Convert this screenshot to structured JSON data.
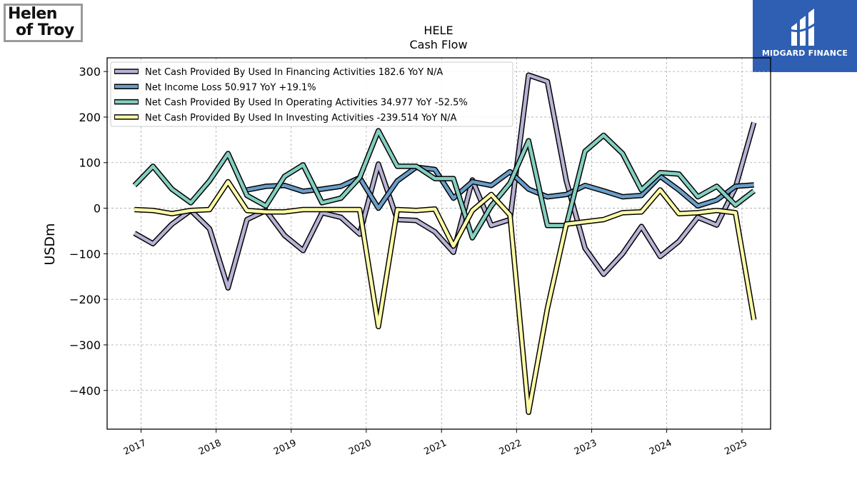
{
  "logos": {
    "left": {
      "line1": "Helen",
      "line2": "of Troy"
    },
    "right": {
      "brand": "MIDGARD FINANCE"
    }
  },
  "colors": {
    "financing": "#b7b3d6",
    "net_income": "#6a9ec9",
    "operating": "#84cfc0",
    "investing": "#fdfba8",
    "outline": "#000000"
  },
  "chart_data": {
    "type": "line",
    "title": "HELE",
    "subtitle": "Cash Flow",
    "ylabel": "USDm",
    "xlabel": "",
    "ylim": [
      -485,
      330
    ],
    "xlim": [
      "2016-07-20",
      "2025-05-20"
    ],
    "yticks": [
      300,
      200,
      100,
      0,
      -100,
      -200,
      -300,
      -400
    ],
    "ytick_labels": [
      "300",
      "200",
      "100",
      "0",
      "−100",
      "−200",
      "−300",
      "−400"
    ],
    "xticks": [
      "2017-01-01",
      "2018-01-01",
      "2019-01-01",
      "2020-01-01",
      "2021-01-01",
      "2022-01-01",
      "2023-01-01",
      "2024-01-01",
      "2025-01-01"
    ],
    "xtick_labels": [
      "2017",
      "2018",
      "2019",
      "2020",
      "2021",
      "2022",
      "2023",
      "2024",
      "2025"
    ],
    "grid": true,
    "legend_position": "top-left",
    "dates": [
      "2016-11-30",
      "2017-02-28",
      "2017-05-31",
      "2017-08-31",
      "2017-11-30",
      "2018-02-28",
      "2018-05-31",
      "2018-08-31",
      "2018-11-30",
      "2019-02-28",
      "2019-05-31",
      "2019-08-31",
      "2019-11-30",
      "2020-02-29",
      "2020-05-31",
      "2020-08-31",
      "2020-11-30",
      "2021-02-28",
      "2021-05-31",
      "2021-08-31",
      "2021-11-30",
      "2022-02-28",
      "2022-05-31",
      "2022-08-31",
      "2022-11-30",
      "2023-02-28",
      "2023-05-31",
      "2023-08-31",
      "2023-11-30",
      "2024-02-29",
      "2024-05-31",
      "2024-08-31",
      "2024-11-30",
      "2025-02-28"
    ],
    "series": [
      {
        "name": "Net Cash Provided By Used In Financing Activities",
        "legend": "Net Cash Provided By Used In Financing Activities  182.6 YoY N/A",
        "color": "#b7b3d6",
        "values": [
          -55,
          -78,
          -35,
          -5,
          -45,
          -175,
          -25,
          -5,
          -60,
          -93,
          -10,
          -20,
          -57,
          97,
          -25,
          -27,
          -52,
          -97,
          62,
          -38,
          -25,
          292,
          278,
          60,
          -88,
          -145,
          -100,
          -40,
          -106,
          -73,
          -20,
          -37,
          45,
          188
        ]
      },
      {
        "name": "Net Income Loss",
        "legend": "Net Income Loss  50.917 YoY +19.1%",
        "color": "#6a9ec9",
        "values": [
          null,
          null,
          null,
          null,
          null,
          null,
          40,
          48,
          50,
          37,
          42,
          48,
          67,
          0,
          60,
          90,
          85,
          22,
          58,
          50,
          80,
          42,
          25,
          30,
          50,
          38,
          25,
          28,
          70,
          40,
          5,
          18,
          48,
          51
        ]
      },
      {
        "name": "Net Cash Provided By Used In Operating Activities",
        "legend": "Net Cash Provided By Used In Operating Activities  34.977 YoY -52.5%",
        "color": "#84cfc0",
        "values": [
          50,
          92,
          42,
          12,
          60,
          120,
          28,
          5,
          70,
          95,
          12,
          22,
          67,
          170,
          92,
          92,
          65,
          65,
          -65,
          5,
          55,
          148,
          -38,
          -38,
          125,
          160,
          120,
          40,
          78,
          75,
          25,
          48,
          7,
          38
        ]
      },
      {
        "name": "Net Cash Provided By Used In Investing Activities",
        "legend": "Net Cash Provided By Used In Investing Activities  -239.514 YoY N/A",
        "color": "#fdfba8",
        "values": [
          -3,
          -5,
          -12,
          -5,
          -3,
          58,
          -5,
          -8,
          -8,
          -3,
          -3,
          -3,
          -3,
          -260,
          -3,
          -5,
          -2,
          -83,
          -5,
          30,
          -15,
          -448,
          -220,
          -35,
          -30,
          -25,
          -10,
          -8,
          40,
          -12,
          -10,
          -5,
          -10,
          -245
        ]
      }
    ]
  }
}
